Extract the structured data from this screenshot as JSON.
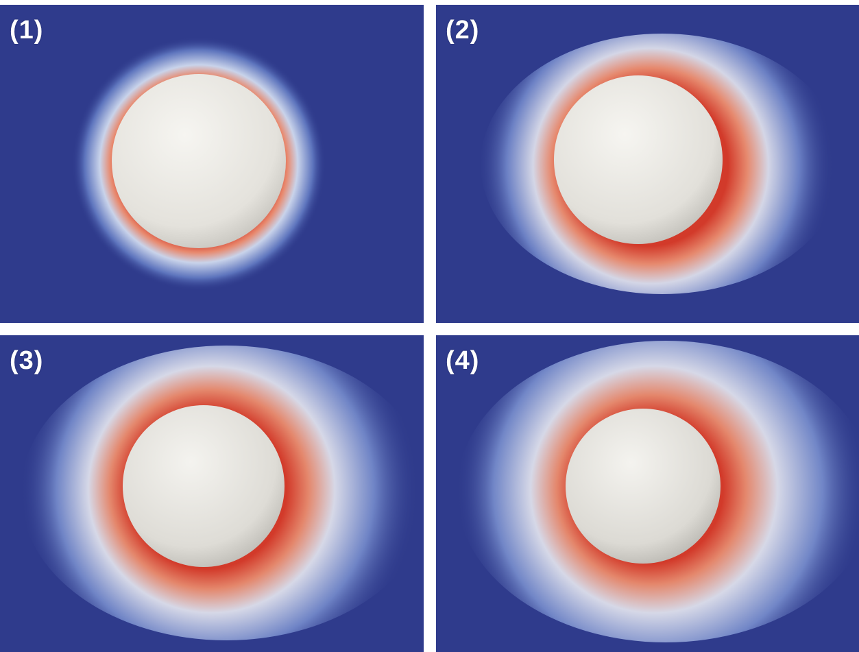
{
  "panels": [
    {
      "label": "(1)"
    },
    {
      "label": "(2)"
    },
    {
      "label": "(3)"
    },
    {
      "label": "(4)"
    }
  ],
  "colors": {
    "background": "#2f3b8c",
    "glow_light": "#c9d3ea",
    "glow_hot": "#e03a2a",
    "sphere": "#e9e7e2",
    "gap": "#ffffff"
  }
}
